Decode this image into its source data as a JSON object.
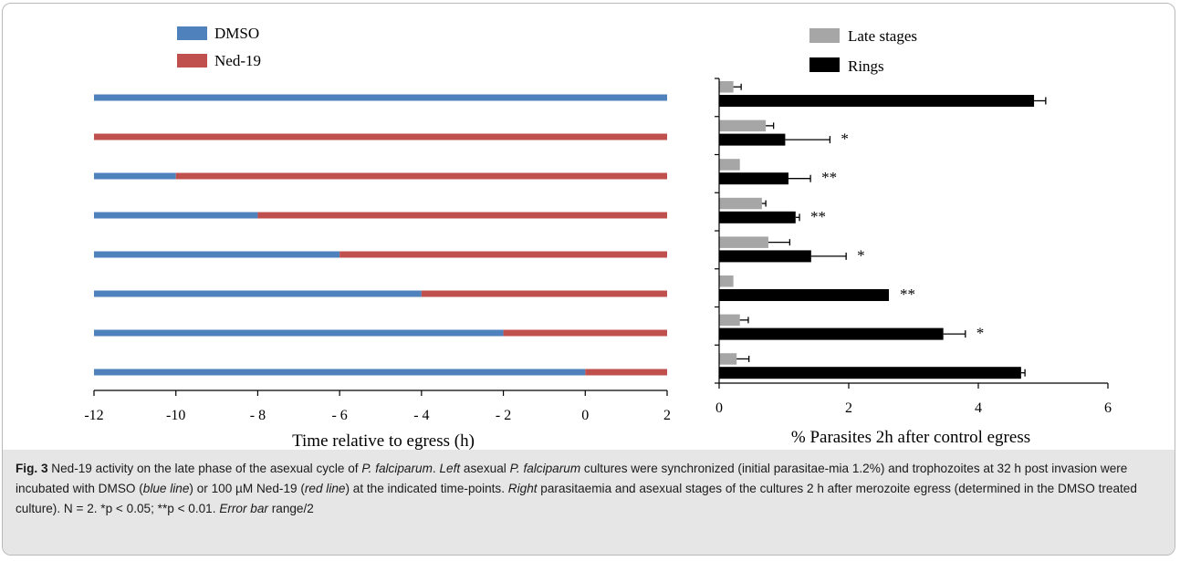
{
  "chart_data": [
    {
      "type": "bar",
      "orientation": "horizontal-timeline",
      "xlabel": "Time relative to egress (h)",
      "xlim": [
        -12,
        2
      ],
      "xticks": [
        -12,
        -10,
        -8,
        -6,
        -4,
        -2,
        0,
        2
      ],
      "xtick_labels": [
        "-12",
        "-10",
        "- 8",
        "- 6",
        "- 4",
        "- 2",
        "0",
        "2"
      ],
      "legend": {
        "placement": "top-left",
        "entries": [
          {
            "name": "DMSO",
            "color": "#4f81bd"
          },
          {
            "name": "Ned-19",
            "color": "#c0504d"
          }
        ]
      },
      "rows": [
        {
          "dmso": [
            -12,
            2
          ],
          "ned19": null
        },
        {
          "dmso": null,
          "ned19": [
            -12,
            2
          ]
        },
        {
          "dmso": [
            -12,
            -10
          ],
          "ned19": [
            -10,
            2
          ]
        },
        {
          "dmso": [
            -12,
            -8
          ],
          "ned19": [
            -8,
            2
          ]
        },
        {
          "dmso": [
            -12,
            -6
          ],
          "ned19": [
            -6,
            2
          ]
        },
        {
          "dmso": [
            -12,
            -4
          ],
          "ned19": [
            -4,
            2
          ]
        },
        {
          "dmso": [
            -12,
            -2
          ],
          "ned19": [
            -2,
            2
          ]
        },
        {
          "dmso": [
            -12,
            0
          ],
          "ned19": [
            0,
            2
          ]
        }
      ]
    },
    {
      "type": "bar",
      "orientation": "horizontal",
      "xlabel": "% Parasites 2h after control egress",
      "xlim": [
        0,
        6
      ],
      "xticks": [
        0,
        2,
        4,
        6
      ],
      "legend": {
        "placement": "top",
        "entries": [
          {
            "name": "Late stages",
            "color": "#a6a6a6"
          },
          {
            "name": "Rings",
            "color": "#000000"
          }
        ]
      },
      "series": [
        {
          "name": "Late stages",
          "values": [
            0.22,
            0.72,
            0.32,
            0.66,
            0.76,
            0.22,
            0.32,
            0.27
          ],
          "errors": [
            0.12,
            0.12,
            0,
            0.06,
            0.33,
            0,
            0.13,
            0.19
          ]
        },
        {
          "name": "Rings",
          "values": [
            4.86,
            1.02,
            1.07,
            1.18,
            1.42,
            2.62,
            3.46,
            4.66
          ],
          "errors": [
            0.18,
            0.69,
            0.34,
            0.06,
            0.54,
            0,
            0.34,
            0.06
          ]
        }
      ],
      "significance": [
        "",
        "*",
        "**",
        "**",
        "*",
        "**",
        "*",
        ""
      ]
    }
  ],
  "caption": {
    "fig_label": "Fig. 3",
    "text_1": "  Ned-19 activity on the late phase of the asexual cycle of ",
    "species_1": "P. falciparum",
    "text_2": ". ",
    "left_label": "Left",
    "text_3": " asexual ",
    "species_2": "P. falciparum",
    "text_4": " cultures were synchronized (initial parasitae-mia 1.2%) and trophozoites at 32 h post invasion were incubated with DMSO (",
    "blue_line": "blue line",
    "text_5": ") or 100 µM Ned-19 (",
    "red_line": "red line",
    "text_6": ") at the indicated time-points. ",
    "right_label": "Right",
    "text_7": " parasitaemia and asexual stages of the cultures 2 h after merozoite egress (determined in the DMSO treated culture). N = 2. *p < 0.05; **p < 0.01. ",
    "error_bar": "Error bar",
    "text_8": " range/2"
  }
}
